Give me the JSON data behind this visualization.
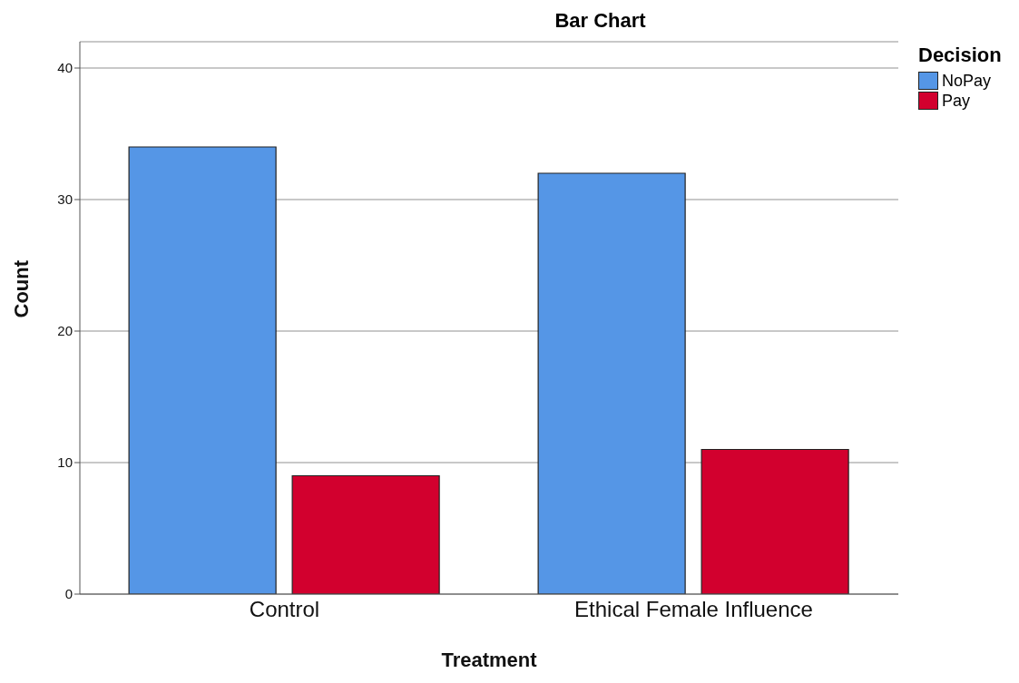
{
  "chart_data": {
    "type": "bar",
    "title": "Bar Chart",
    "xlabel": "Treatment",
    "ylabel": "Count",
    "legend_title": "Decision",
    "categories": [
      "Control",
      "Ethical Female Influence"
    ],
    "series": [
      {
        "name": "NoPay",
        "color": "#5596e6",
        "values": [
          34,
          32
        ]
      },
      {
        "name": "Pay",
        "color": "#d2002e",
        "values": [
          9,
          11
        ]
      }
    ],
    "ylim": [
      0,
      42
    ],
    "yticks": [
      0,
      10,
      20,
      30,
      40
    ],
    "grid": "y",
    "legend": "top right"
  }
}
